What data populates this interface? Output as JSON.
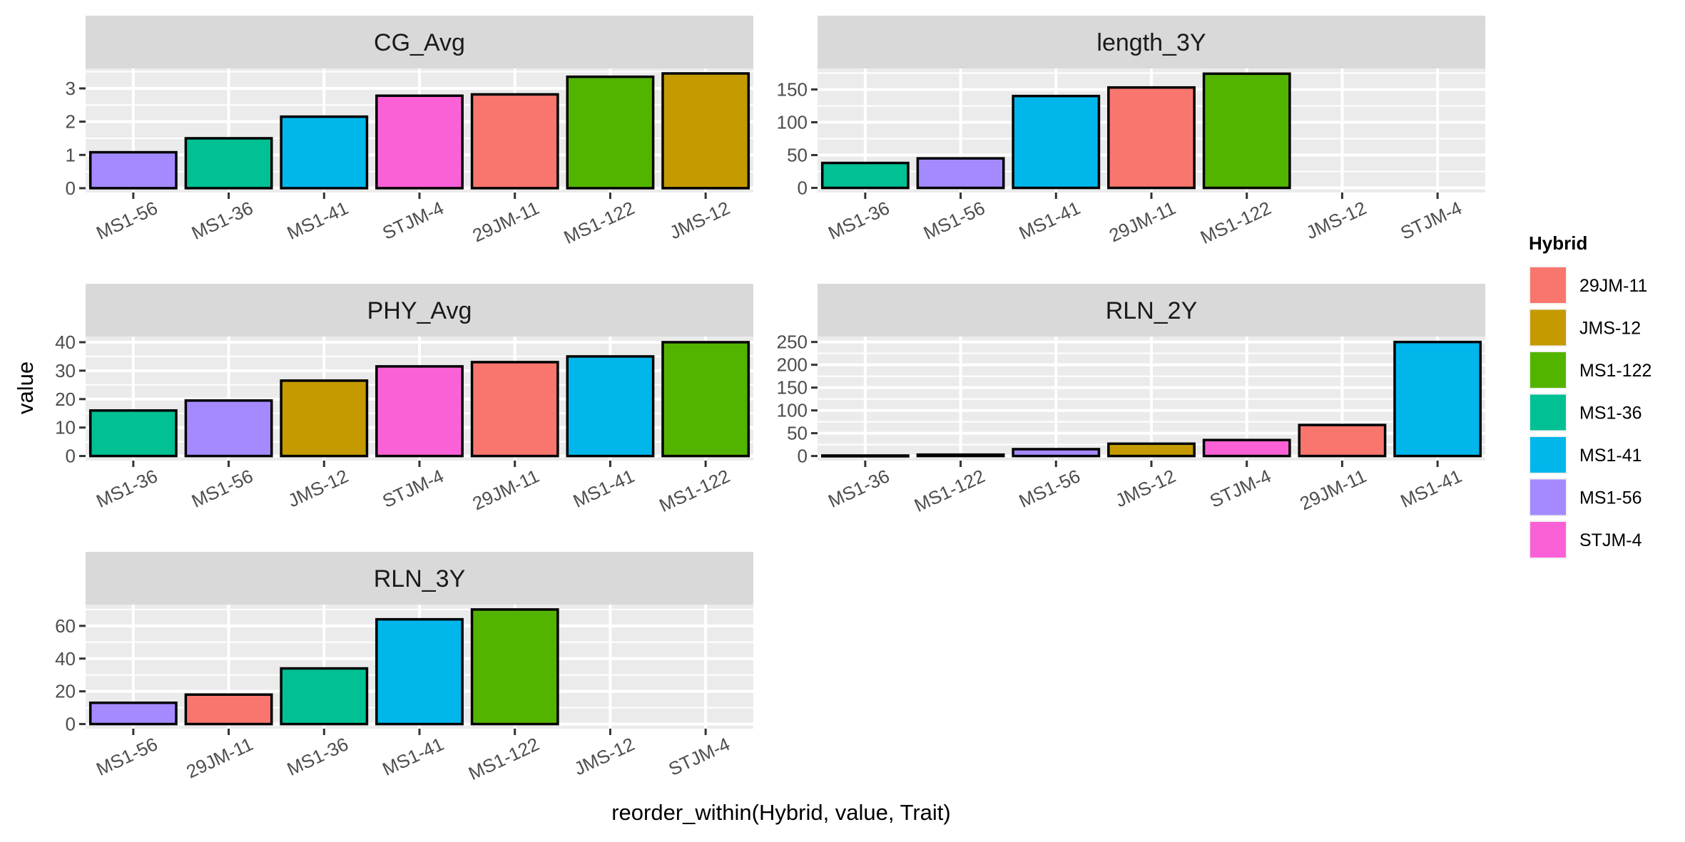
{
  "chart_data": {
    "type": "bar",
    "faceted": true,
    "xlabel": "reorder_within(Hybrid, value, Trait)",
    "ylabel": "value",
    "legend": {
      "title": "Hybrid",
      "placement": "right",
      "entries": [
        {
          "label": "29JM-11",
          "color": "#F8766D"
        },
        {
          "label": "JMS-12",
          "color": "#C49A00"
        },
        {
          "label": "MS1-122",
          "color": "#53B400"
        },
        {
          "label": "MS1-36",
          "color": "#00C094"
        },
        {
          "label": "MS1-41",
          "color": "#00B6EB"
        },
        {
          "label": "MS1-56",
          "color": "#A58AFF"
        },
        {
          "label": "STJM-4",
          "color": "#FB61D7"
        }
      ]
    },
    "grid": true,
    "panels": [
      {
        "title": "CG_Avg",
        "categories": [
          "MS1-56",
          "MS1-36",
          "MS1-41",
          "STJM-4",
          "29JM-11",
          "MS1-122",
          "JMS-12"
        ],
        "values": [
          1.08,
          1.5,
          2.15,
          2.78,
          2.82,
          3.35,
          3.45
        ],
        "ylim": [
          -0.13,
          3.6
        ],
        "yticks": [
          0,
          1,
          2,
          3
        ]
      },
      {
        "title": "length_3Y",
        "categories": [
          "MS1-36",
          "MS1-56",
          "MS1-41",
          "29JM-11",
          "MS1-122",
          "JMS-12",
          "STJM-4"
        ],
        "values": [
          38,
          45,
          140,
          153,
          174,
          null,
          null
        ],
        "ylim": [
          -7,
          182
        ],
        "yticks": [
          0,
          50,
          100,
          150
        ]
      },
      {
        "title": "PHY_Avg",
        "categories": [
          "MS1-36",
          "MS1-56",
          "JMS-12",
          "STJM-4",
          "29JM-11",
          "MS1-41",
          "MS1-122"
        ],
        "values": [
          16,
          19.5,
          26.5,
          31.5,
          33,
          35,
          40
        ],
        "ylim": [
          -1.6,
          42
        ],
        "yticks": [
          0,
          10,
          20,
          30,
          40
        ]
      },
      {
        "title": "RLN_2Y",
        "categories": [
          "MS1-36",
          "MS1-122",
          "MS1-56",
          "JMS-12",
          "STJM-4",
          "29JM-11",
          "MS1-41"
        ],
        "values": [
          1,
          3,
          15,
          27,
          35,
          68,
          250
        ],
        "ylim": [
          -10,
          262
        ],
        "yticks": [
          0,
          50,
          100,
          150,
          200,
          250
        ]
      },
      {
        "title": "RLN_3Y",
        "categories": [
          "MS1-56",
          "29JM-11",
          "MS1-36",
          "MS1-41",
          "MS1-122",
          "JMS-12",
          "STJM-4"
        ],
        "values": [
          13,
          18,
          34,
          64,
          70,
          null,
          null
        ],
        "ylim": [
          -2.8,
          73
        ],
        "yticks": [
          0,
          20,
          40,
          60
        ]
      }
    ]
  }
}
